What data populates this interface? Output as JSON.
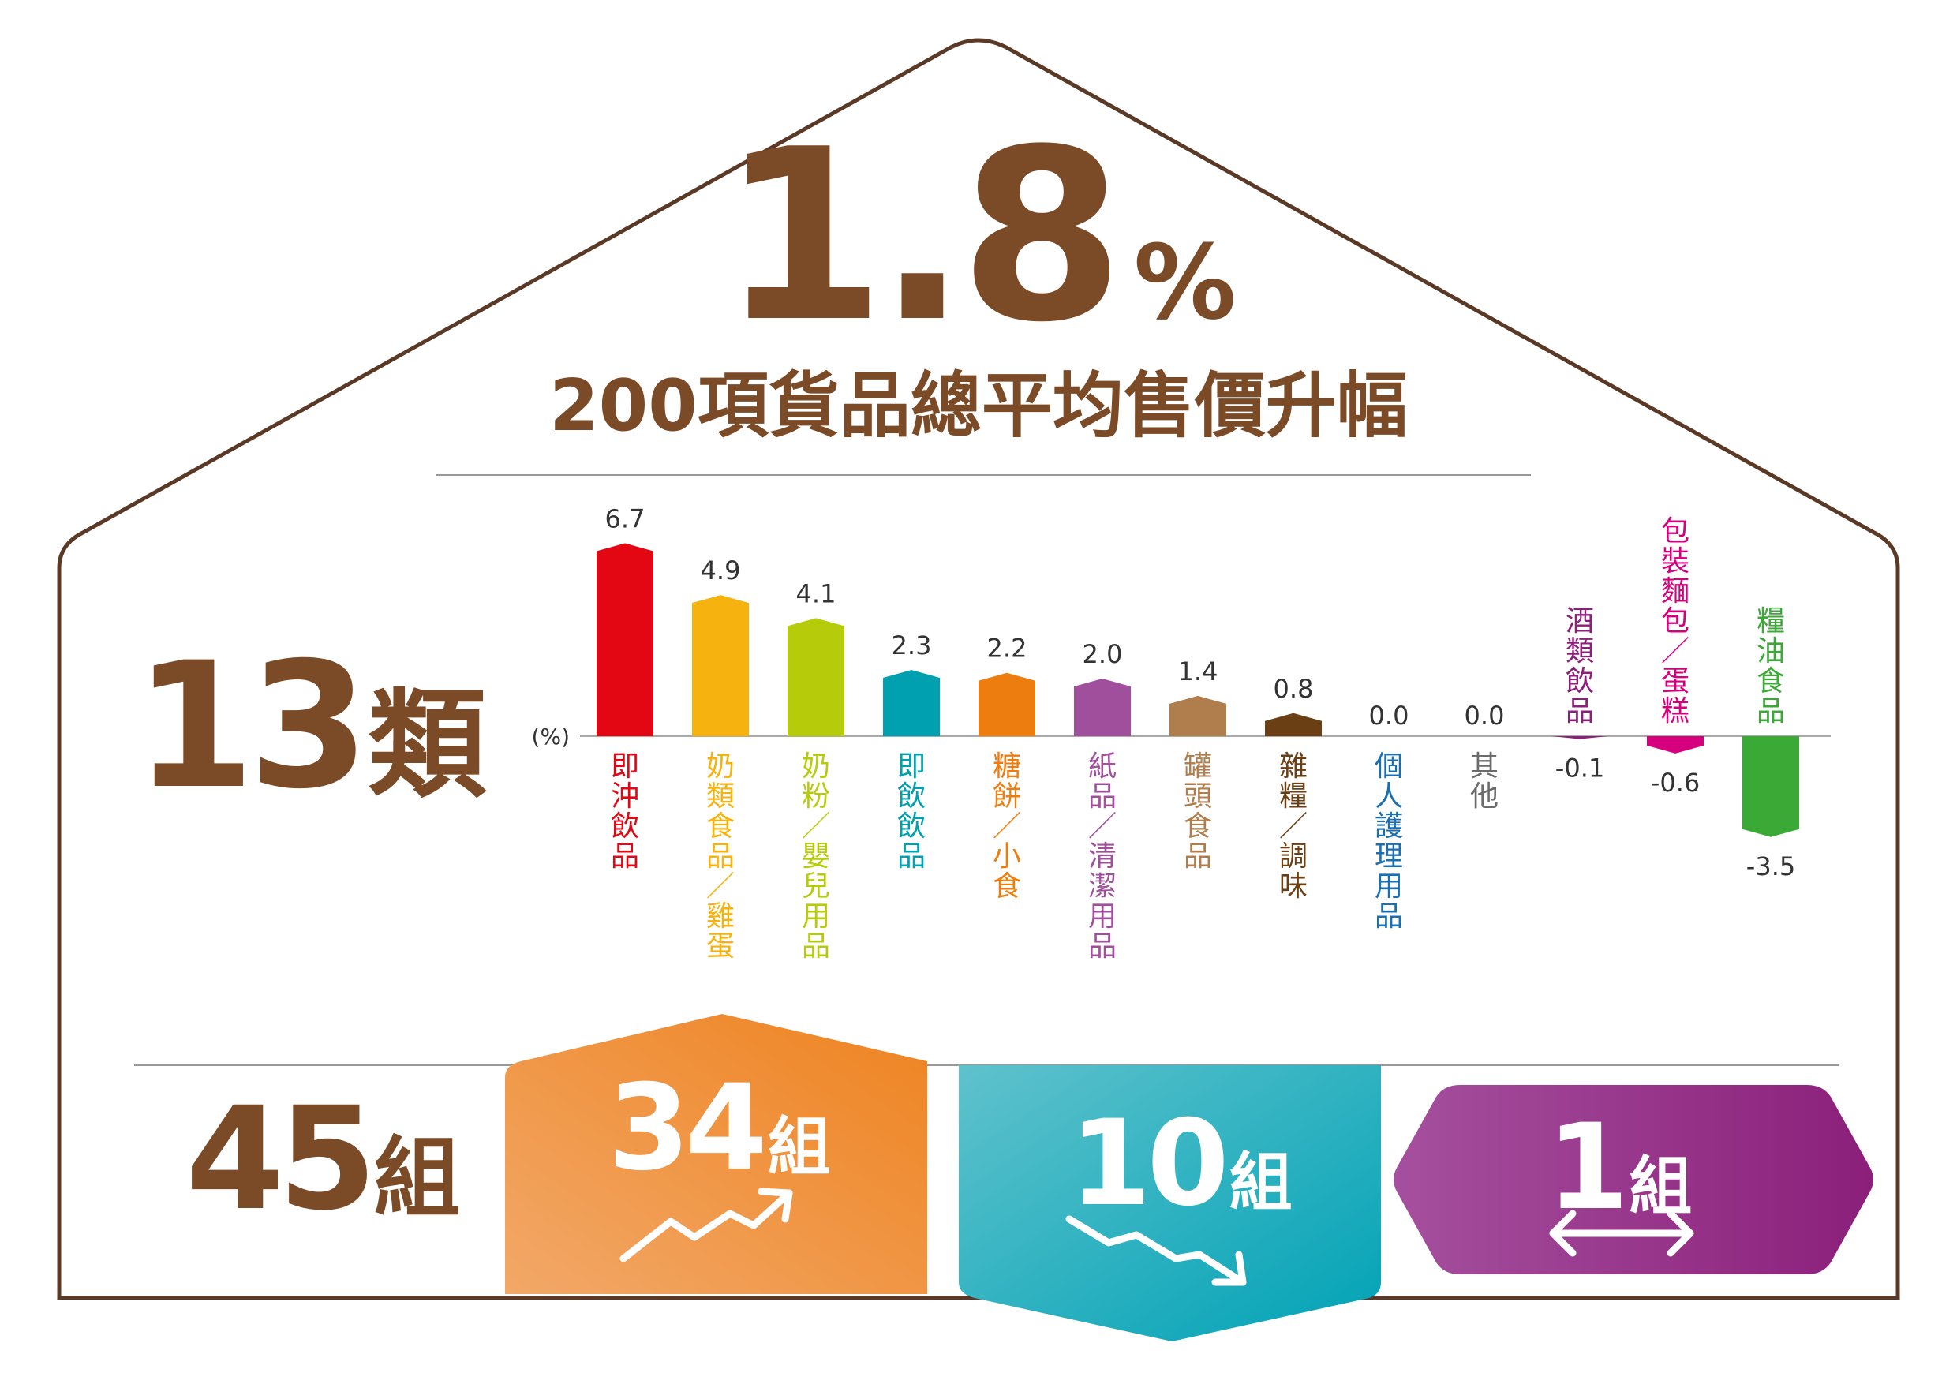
{
  "headline": {
    "value": "1.8",
    "unit": "%",
    "subtitle": "200項貨品總平均售價升幅"
  },
  "categories": {
    "count": "13",
    "unit": "類"
  },
  "groups": {
    "total": "45",
    "unit": "組",
    "up": {
      "count": "34",
      "unit": "組",
      "color_from": "#f2a868",
      "color_to": "#ee8320",
      "icon": "trend-up-arrow-icon"
    },
    "down": {
      "count": "10",
      "unit": "組",
      "color_from": "#5fc2cc",
      "color_to": "#00a2b6",
      "icon": "trend-down-arrow-icon"
    },
    "flat": {
      "count": "1",
      "unit": "組",
      "color_from": "#a5509e",
      "color_to": "#8b1f7a",
      "icon": "double-arrow-icon"
    }
  },
  "colors": {
    "brown": "#7b4a26",
    "outline": "#5a3a26",
    "divider": "#999999"
  },
  "chart_data": {
    "type": "bar",
    "unit_label": "(%)",
    "categories": [
      "即沖飲品",
      "奶類食品/雞蛋",
      "奶粉/嬰兒用品",
      "即飲飲品",
      "糖餅/小食",
      "紙品/清潔用品",
      "罐頭食品",
      "雜糧/調味",
      "個人護理用品",
      "其他",
      "酒類飲品",
      "包裝麵包/蛋糕",
      "糧油食品"
    ],
    "values": [
      6.7,
      4.9,
      4.1,
      2.3,
      2.2,
      2.0,
      1.4,
      0.8,
      0.0,
      0.0,
      -0.1,
      -0.6,
      -3.5
    ],
    "value_labels": [
      "6.7",
      "4.9",
      "4.1",
      "2.3",
      "2.2",
      "2.0",
      "1.4",
      "0.8",
      "0.0",
      "0.0",
      "-0.1",
      "-0.6",
      "-3.5"
    ],
    "colors": [
      "#e30613",
      "#f6b30f",
      "#b6cc0b",
      "#00a0b0",
      "#ee7d10",
      "#a04f9c",
      "#b07d4c",
      "#6b3f14",
      "#1a6fb3",
      "#6b6b6b",
      "#8b1f7a",
      "#d6007e",
      "#3aa935"
    ]
  }
}
